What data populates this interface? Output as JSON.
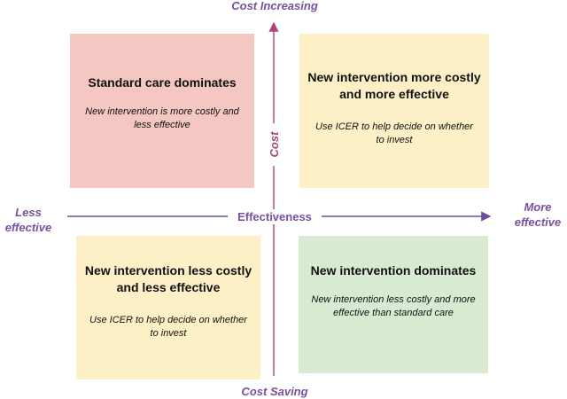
{
  "axes": {
    "top_label": "Cost Increasing",
    "bottom_label": "Cost Saving",
    "left_label_line1": "Less",
    "left_label_line2": "effective",
    "right_label_line1": "More",
    "right_label_line2": "effective",
    "horizontal_axis_title": "Effectiveness",
    "vertical_axis_title": "Cost"
  },
  "quadrants": {
    "top_left": {
      "title": "Standard care dominates",
      "description": "New intervention is more costly and less effective",
      "color": "#f4c7c3"
    },
    "top_right": {
      "title": "New intervention more costly and more effective",
      "description": "Use ICER to help decide on whether to invest",
      "color": "#fdefc6"
    },
    "bottom_left": {
      "title": "New intervention less costly and less effective",
      "description": "Use ICER to help decide on whether to invest",
      "color": "#fdefc6"
    },
    "bottom_right": {
      "title": "New intervention dominates",
      "description": "New intervention less costly and more effective than standard care",
      "color": "#d9ead3"
    }
  },
  "colors": {
    "horizontal_axis": "#6b4fa0",
    "vertical_axis": "#b0427a",
    "label_purple": "#7a4fa3"
  }
}
